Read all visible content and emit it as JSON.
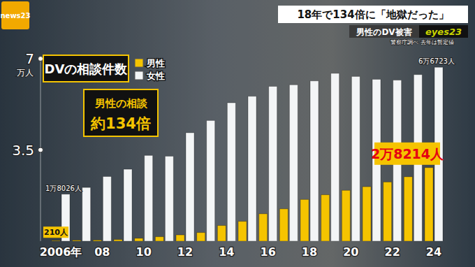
{
  "header": {
    "logo": "news23",
    "headline": "18年で134倍に「地獄だった」",
    "segment": "男性のDV被害",
    "program": "eyes23"
  },
  "chart_data": {
    "type": "bar",
    "title": "DVの相談件数",
    "source": "警察庁調べ 去年は暫定値",
    "annotations": [
      "男性の相談",
      "約134倍"
    ],
    "y_label": "万人",
    "categories": [
      "2006年",
      null,
      "08",
      null,
      "10",
      null,
      "12",
      null,
      "14",
      null,
      "16",
      null,
      "18",
      null,
      "20",
      null,
      "22",
      null,
      "24"
    ],
    "series": [
      {
        "name": "男性",
        "color": "#f5c400",
        "values": [
          0.021,
          0.035,
          0.04,
          0.06,
          0.11,
          0.17,
          0.24,
          0.33,
          0.6,
          0.76,
          1.05,
          1.24,
          1.6,
          1.78,
          1.95,
          2.09,
          2.27,
          2.47,
          2.8214
        ],
        "value_labels": [
          "210人",
          null,
          null,
          null,
          null,
          null,
          null,
          null,
          null,
          null,
          null,
          null,
          null,
          null,
          null,
          null,
          null,
          null,
          "2万8214人"
        ]
      },
      {
        "name": "女性",
        "color": "#f3f5f6",
        "values": [
          1.8026,
          2.06,
          2.48,
          2.76,
          3.29,
          3.26,
          4.16,
          4.63,
          5.31,
          5.56,
          5.94,
          6.0,
          6.15,
          6.44,
          6.32,
          6.21,
          6.18,
          6.39,
          6.6723
        ],
        "value_labels": [
          "1万8026人",
          null,
          null,
          null,
          null,
          null,
          null,
          null,
          null,
          null,
          null,
          null,
          null,
          null,
          null,
          null,
          null,
          null,
          "6万6723人"
        ]
      }
    ],
    "ylim": [
      0,
      7
    ],
    "yticks": [
      3.5,
      7
    ],
    "grid": false,
    "legend": "upper left"
  }
}
